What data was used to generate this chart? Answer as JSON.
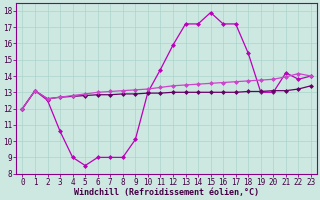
{
  "xlabel": "Windchill (Refroidissement éolien,°C)",
  "x_ticks": [
    0,
    1,
    2,
    3,
    4,
    5,
    6,
    7,
    8,
    9,
    10,
    11,
    12,
    13,
    14,
    15,
    16,
    17,
    18,
    19,
    20,
    21,
    22,
    23
  ],
  "ylim": [
    8,
    18.5
  ],
  "yticks": [
    8,
    9,
    10,
    11,
    12,
    13,
    14,
    15,
    16,
    17,
    18
  ],
  "background_color": "#cce8e0",
  "grid_color": "#aad4cc",
  "tick_fontsize": 5.5,
  "xlabel_fontsize": 6.0,
  "line1_y": [
    12.0,
    13.1,
    12.5,
    10.6,
    9.0,
    8.5,
    9.0,
    9.0,
    9.0,
    10.1,
    13.0,
    14.4,
    15.9,
    17.2,
    17.2,
    17.9,
    17.2,
    17.2,
    15.4,
    13.0,
    13.0,
    14.2,
    13.8,
    14.0
  ],
  "line2_y": [
    12.0,
    13.1,
    12.6,
    12.7,
    12.75,
    12.8,
    12.85,
    12.85,
    12.9,
    12.9,
    12.95,
    12.95,
    13.0,
    13.0,
    13.0,
    13.0,
    13.0,
    13.0,
    13.05,
    13.05,
    13.1,
    13.1,
    13.2,
    13.4
  ],
  "line3_y": [
    12.0,
    13.1,
    12.6,
    12.7,
    12.8,
    12.9,
    13.0,
    13.05,
    13.1,
    13.15,
    13.2,
    13.3,
    13.4,
    13.45,
    13.5,
    13.55,
    13.6,
    13.65,
    13.7,
    13.75,
    13.8,
    13.95,
    14.15,
    14.0
  ],
  "line1_color": "#bb00bb",
  "line2_color": "#660066",
  "line3_color": "#cc44cc",
  "spine_color": "#880088",
  "label_color": "#440044"
}
